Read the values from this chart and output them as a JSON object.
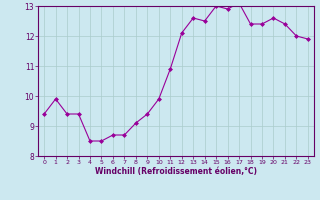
{
  "x": [
    0,
    1,
    2,
    3,
    4,
    5,
    6,
    7,
    8,
    9,
    10,
    11,
    12,
    13,
    14,
    15,
    16,
    17,
    18,
    19,
    20,
    21,
    22,
    23
  ],
  "y": [
    9.4,
    9.9,
    9.4,
    9.4,
    8.5,
    8.5,
    8.7,
    8.7,
    9.1,
    9.4,
    9.9,
    10.9,
    12.1,
    12.6,
    12.5,
    13.0,
    12.9,
    13.1,
    12.4,
    12.4,
    12.6,
    12.4,
    12.0,
    11.9
  ],
  "xlabel": "Windchill (Refroidissement éolien,°C)",
  "ylim": [
    8,
    13
  ],
  "xlim": [
    -0.5,
    23.5
  ],
  "yticks": [
    8,
    9,
    10,
    11,
    12,
    13
  ],
  "xticks": [
    0,
    1,
    2,
    3,
    4,
    5,
    6,
    7,
    8,
    9,
    10,
    11,
    12,
    13,
    14,
    15,
    16,
    17,
    18,
    19,
    20,
    21,
    22,
    23
  ],
  "line_color": "#990099",
  "marker_color": "#990099",
  "bg_color": "#cce8f0",
  "grid_color": "#aacccc",
  "axis_color": "#660066",
  "label_color": "#660066",
  "tick_color": "#660066"
}
